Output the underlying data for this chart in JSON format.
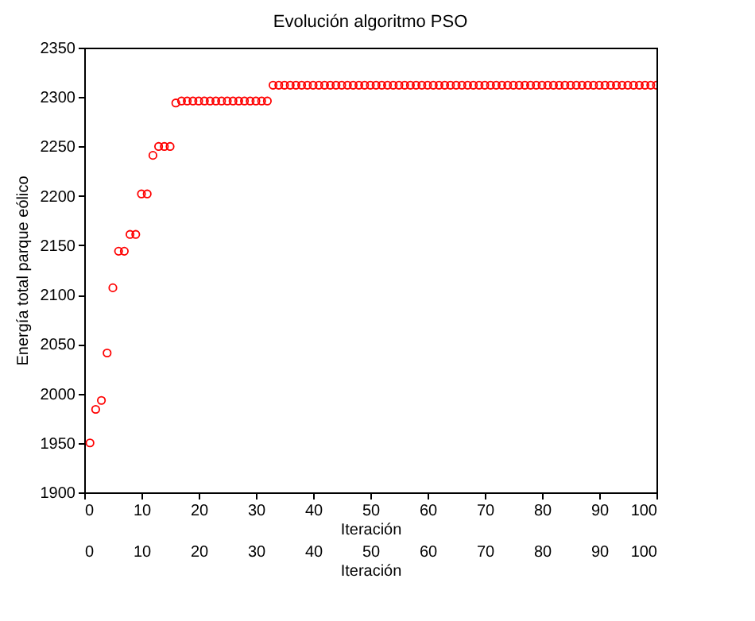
{
  "chart_data": {
    "type": "scatter",
    "title": "Evolución algoritmo PSO",
    "xlabel": "Iteración",
    "ylabel": "Energía total parque eólico",
    "marker": "circle",
    "grid": false,
    "x": [
      1,
      2,
      3,
      4,
      5,
      6,
      7,
      8,
      9,
      10,
      11,
      12,
      13,
      14,
      15,
      16,
      17,
      18,
      19,
      20,
      21,
      22,
      23,
      24,
      25,
      26,
      27,
      28,
      29,
      30,
      31,
      32,
      33,
      34,
      35,
      36,
      37,
      38,
      39,
      40,
      41,
      42,
      43,
      44,
      45,
      46,
      47,
      48,
      49,
      50,
      51,
      52,
      53,
      54,
      55,
      56,
      57,
      58,
      59,
      60,
      61,
      62,
      63,
      64,
      65,
      66,
      67,
      68,
      69,
      70,
      71,
      72,
      73,
      74,
      75,
      76,
      77,
      78,
      79,
      80,
      81,
      82,
      83,
      84,
      85,
      86,
      87,
      88,
      89,
      90,
      91,
      92,
      93,
      94,
      95,
      96,
      97,
      98,
      99,
      100
    ],
    "series": [
      {
        "color": "#ff0000",
        "values": [
          1950,
          1984,
          1993,
          2041,
          2107,
          2144,
          2144,
          2161,
          2161,
          2202,
          2202,
          2241,
          2250,
          2250,
          2250,
          2294,
          2296,
          2296,
          2296,
          2296,
          2296,
          2296,
          2296,
          2296,
          2296,
          2296,
          2296,
          2296,
          2296,
          2296,
          2296,
          2296,
          2312,
          2312,
          2312,
          2312,
          2312,
          2312,
          2312,
          2312,
          2312,
          2312,
          2312,
          2312,
          2312,
          2312,
          2312,
          2312,
          2312,
          2312,
          2312,
          2312,
          2312,
          2312,
          2312,
          2312,
          2312,
          2312,
          2312,
          2312,
          2312,
          2312,
          2312,
          2312,
          2312,
          2312,
          2312,
          2312,
          2312,
          2312,
          2312,
          2312,
          2312,
          2312,
          2312,
          2312,
          2312,
          2312,
          2312,
          2312,
          2312,
          2312,
          2312,
          2312,
          2312,
          2312,
          2312,
          2312,
          2312,
          2312,
          2312,
          2312,
          2312,
          2312,
          2312,
          2312,
          2312,
          2312,
          2312,
          2312
        ]
      }
    ],
    "xlim": [
      0,
      100
    ],
    "xticks": [
      0,
      10,
      20,
      30,
      40,
      50,
      60,
      70,
      80,
      90,
      100
    ],
    "ylim": [
      1900,
      2350
    ],
    "yticks": [
      1900,
      1950,
      2000,
      2050,
      2100,
      2150,
      2200,
      2250,
      2300,
      2350
    ],
    "x2label": "Iteración",
    "x2lim": [
      0,
      100
    ],
    "x2ticks": [
      0,
      10,
      20,
      30,
      40,
      50,
      60,
      70,
      80,
      90,
      100
    ]
  }
}
